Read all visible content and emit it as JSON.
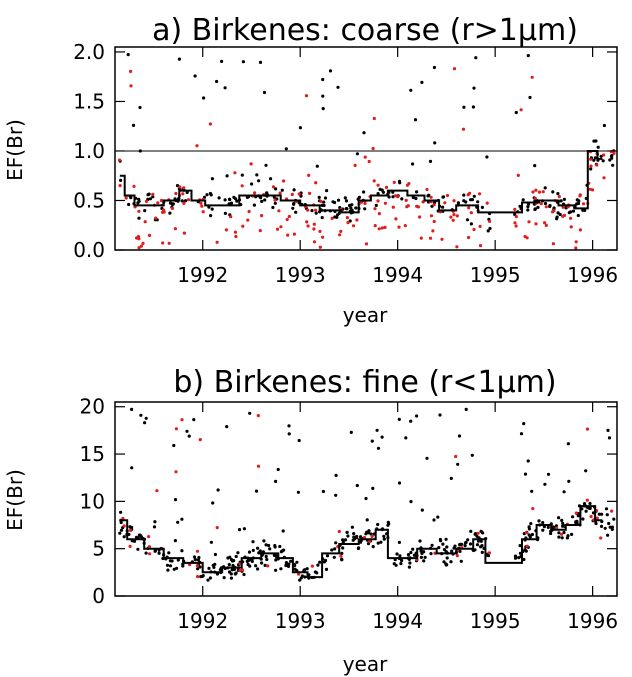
{
  "colors": {
    "axis": "#000000",
    "black_points": "#000000",
    "red_points": "#e11d1d",
    "smooth_line": "#000000"
  },
  "chart_data": [
    {
      "type": "scatter",
      "title": "a) Birkenes: coarse (r>1µm)",
      "xlabel": "year",
      "ylabel": "EF(Br)",
      "xlim": [
        1991.1,
        1996.25
      ],
      "ylim": [
        0.0,
        2.05
      ],
      "x_ticks": [
        1992,
        1993,
        1994,
        1995,
        1996
      ],
      "x_tick_labels": [
        "1992",
        "1993",
        "1994",
        "1995",
        "1996"
      ],
      "y_ticks": [
        0.0,
        0.5,
        1.0,
        1.5,
        2.0
      ],
      "y_tick_labels": [
        "0.0",
        "0.5",
        "1.0",
        "1.5",
        "2.0"
      ],
      "reference_line": 1.0,
      "gap": [
        1994.95,
        1995.2
      ],
      "series": [
        {
          "color": "#000000",
          "kind": "points"
        },
        {
          "color": "#e11d1d",
          "kind": "points"
        },
        {
          "color": "#000000",
          "kind": "line"
        }
      ],
      "smooth_line": [
        [
          1991.15,
          0.75
        ],
        [
          1991.25,
          0.55
        ],
        [
          1991.35,
          0.45
        ],
        [
          1991.5,
          0.45
        ],
        [
          1991.7,
          0.5
        ],
        [
          1991.82,
          0.6
        ],
        [
          1991.95,
          0.5
        ],
        [
          1992.1,
          0.45
        ],
        [
          1992.3,
          0.45
        ],
        [
          1992.45,
          0.55
        ],
        [
          1992.7,
          0.55
        ],
        [
          1992.9,
          0.5
        ],
        [
          1993.1,
          0.45
        ],
        [
          1993.3,
          0.4
        ],
        [
          1993.55,
          0.38
        ],
        [
          1993.65,
          0.5
        ],
        [
          1993.8,
          0.55
        ],
        [
          1994.0,
          0.6
        ],
        [
          1994.2,
          0.55
        ],
        [
          1994.35,
          0.5
        ],
        [
          1994.5,
          0.4
        ],
        [
          1994.7,
          0.45
        ],
        [
          1994.95,
          0.38
        ],
        [
          1995.2,
          0.38
        ],
        [
          1995.35,
          0.48
        ],
        [
          1995.55,
          0.5
        ],
        [
          1995.75,
          0.45
        ],
        [
          1995.9,
          0.42
        ],
        [
          1996.0,
          1.0
        ],
        [
          1996.1,
          0.92
        ]
      ],
      "black_points_count": 300,
      "red_points_count": 230
    },
    {
      "type": "scatter",
      "title": "b) Birkenes: fine (r<1µm)",
      "xlabel": "year",
      "ylabel": "EF(Br)",
      "xlim": [
        1991.1,
        1996.25
      ],
      "ylim": [
        0,
        20.5
      ],
      "x_ticks": [
        1992,
        1993,
        1994,
        1995,
        1996
      ],
      "x_tick_labels": [
        "1992",
        "1993",
        "1994",
        "1995",
        "1996"
      ],
      "y_ticks": [
        0,
        5,
        10,
        15,
        20
      ],
      "y_tick_labels": [
        "0",
        "5",
        "10",
        "15",
        "20"
      ],
      "reference_line": 0,
      "gap": [
        1994.95,
        1995.2
      ],
      "series": [
        {
          "color": "#000000",
          "kind": "points"
        },
        {
          "color": "#e11d1d",
          "kind": "points"
        },
        {
          "color": "#000000",
          "kind": "line"
        }
      ],
      "smooth_line": [
        [
          1991.15,
          8.0
        ],
        [
          1991.3,
          6.0
        ],
        [
          1991.5,
          5.0
        ],
        [
          1991.7,
          4.0
        ],
        [
          1991.9,
          3.5
        ],
        [
          1992.1,
          2.5
        ],
        [
          1992.3,
          3.0
        ],
        [
          1992.5,
          4.0
        ],
        [
          1992.7,
          4.5
        ],
        [
          1992.85,
          4.0
        ],
        [
          1993.0,
          2.5
        ],
        [
          1993.15,
          2.0
        ],
        [
          1993.3,
          4.5
        ],
        [
          1993.5,
          5.5
        ],
        [
          1993.7,
          6.0
        ],
        [
          1993.85,
          7.0
        ],
        [
          1993.95,
          4.0
        ],
        [
          1994.1,
          4.0
        ],
        [
          1994.3,
          5.0
        ],
        [
          1994.5,
          4.5
        ],
        [
          1994.7,
          5.0
        ],
        [
          1994.85,
          6.0
        ],
        [
          1994.95,
          3.5
        ],
        [
          1995.2,
          3.5
        ],
        [
          1995.35,
          6.0
        ],
        [
          1995.5,
          7.5
        ],
        [
          1995.65,
          7.0
        ],
        [
          1995.8,
          7.5
        ],
        [
          1995.95,
          9.5
        ],
        [
          1996.1,
          8.0
        ]
      ],
      "black_points_count": 480,
      "red_points_count": 55
    }
  ]
}
